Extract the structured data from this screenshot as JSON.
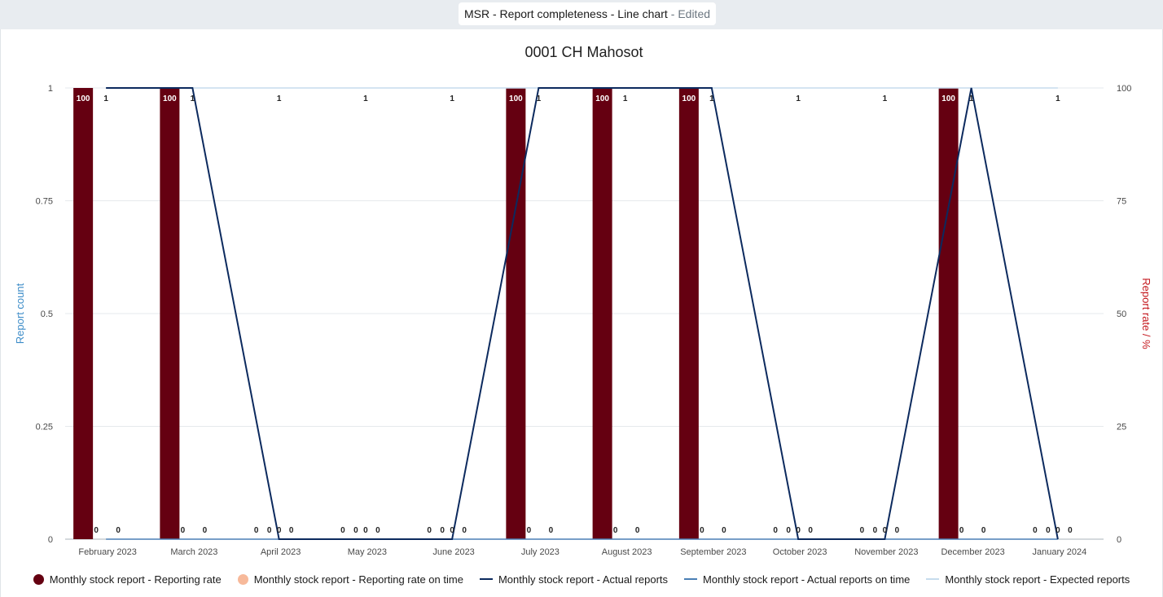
{
  "header": {
    "title": "MSR - Report completeness - Line chart",
    "status": "- Edited"
  },
  "chart_data": {
    "type": "bar",
    "title": "0001 CH Mahosot",
    "ylabel": "Report count",
    "y2label": "Report rate / %",
    "ylim": [
      0,
      1
    ],
    "y2lim": [
      0,
      100
    ],
    "yticks": [
      "0",
      "0.25",
      "0.5",
      "0.75",
      "1"
    ],
    "y2ticks": [
      "0",
      "25",
      "50",
      "75",
      "100"
    ],
    "categories": [
      "February 2023",
      "March 2023",
      "April 2023",
      "May 2023",
      "June 2023",
      "July 2023",
      "August 2023",
      "September 2023",
      "October 2023",
      "November 2023",
      "December 2023",
      "January 2024"
    ],
    "series": [
      {
        "name": "Monthly stock report - Reporting rate",
        "type": "bar",
        "axis": "right",
        "values": [
          100,
          100,
          0,
          0,
          0,
          100,
          100,
          100,
          0,
          0,
          100,
          0
        ]
      },
      {
        "name": "Monthly stock report - Reporting rate on time",
        "type": "bar",
        "axis": "right",
        "values": [
          0,
          0,
          0,
          0,
          0,
          0,
          0,
          0,
          0,
          0,
          0,
          0
        ]
      },
      {
        "name": "Monthly stock report - Actual reports",
        "type": "line",
        "axis": "left",
        "values": [
          1,
          1,
          0,
          0,
          0,
          1,
          1,
          1,
          0,
          0,
          1,
          0
        ]
      },
      {
        "name": "Monthly stock report - Actual reports on time",
        "type": "line",
        "axis": "left",
        "values": [
          0,
          0,
          0,
          0,
          0,
          0,
          0,
          0,
          0,
          0,
          0,
          0
        ]
      },
      {
        "name": "Monthly stock report - Expected reports",
        "type": "line",
        "axis": "left",
        "values": [
          1,
          1,
          1,
          1,
          1,
          1,
          1,
          1,
          1,
          1,
          1,
          1
        ]
      }
    ],
    "colors": [
      "#650011",
      "#f7b99a",
      "#0c2a5e",
      "#4a7fb5",
      "#c6dced"
    ],
    "axis_label_colors": {
      "left": "#3c8cc8",
      "right": "#c4161c"
    },
    "grid": true,
    "legend_position": "bottom"
  }
}
